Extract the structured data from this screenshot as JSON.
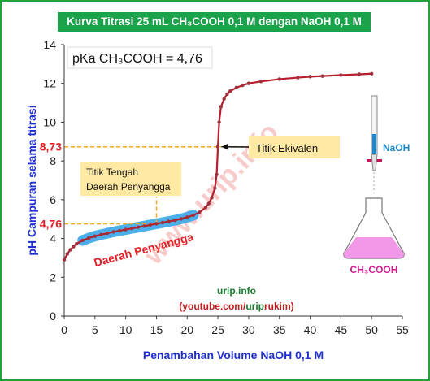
{
  "chart_data": {
    "type": "line",
    "title": "Kurva Titrasi 25 mL CH₃COOH 0,1 M dengan NaOH 0,1 M",
    "xlabel": "Penambahan Volume NaOH 0,1 M",
    "ylabel": "pH Campuran selama titrasi",
    "xlim": [
      0,
      55
    ],
    "ylim": [
      0,
      14
    ],
    "xticks": [
      0,
      5,
      10,
      15,
      20,
      25,
      30,
      35,
      40,
      45,
      50,
      55
    ],
    "yticks": [
      0,
      2,
      4,
      6,
      8,
      10,
      12,
      14
    ],
    "grid": false,
    "series": [
      {
        "x": [
          0,
          0.5,
          1,
          1.5,
          2,
          3,
          4,
          5,
          6,
          7,
          8,
          9,
          10,
          11,
          12,
          13,
          14,
          15,
          16,
          17,
          18,
          19,
          20,
          21,
          22,
          23,
          23.5,
          24,
          24.5,
          24.8,
          25,
          25.2,
          25.5,
          26,
          26.5,
          27,
          28,
          29,
          30,
          32,
          35,
          38,
          40,
          42,
          45,
          48,
          50
        ],
        "y": [
          2.9,
          3.2,
          3.42,
          3.58,
          3.72,
          3.9,
          4.02,
          4.12,
          4.2,
          4.27,
          4.34,
          4.4,
          4.46,
          4.52,
          4.58,
          4.64,
          4.7,
          4.76,
          4.82,
          4.88,
          4.94,
          5.01,
          5.1,
          5.2,
          5.35,
          5.6,
          5.8,
          6.1,
          6.6,
          7.3,
          8.73,
          10.0,
          10.8,
          11.2,
          11.45,
          11.6,
          11.78,
          11.9,
          12.0,
          12.1,
          12.22,
          12.3,
          12.35,
          12.38,
          12.43,
          12.47,
          12.5
        ]
      }
    ],
    "annotations": {
      "pka": "pKa CH₃COOH = 4,76",
      "ph_half_equivalence": 4.76,
      "ph_half_equivalence_label": "4,76",
      "ph_equivalence": 8.73,
      "ph_equivalence_label": "8,73",
      "half_equivalence_label_line1": "Titik Tengah",
      "half_equivalence_label_line2": "Daerah Penyangga",
      "equivalence_label": "Titik Ekivalen",
      "buffer_label": "Daerah Penyangga",
      "buffer_region_x": [
        2.5,
        21.5
      ],
      "watermark": "www.urip.info",
      "source_line1": "urip.info",
      "source_line2_a": "(youtube.com/",
      "source_line2_b": "urip",
      "source_line2_c": "rukim)",
      "naoh_label": "NaOH",
      "flask_label": "CH₃COOH"
    },
    "colors": {
      "curve": "#b81d2e",
      "marker": "#a1303a",
      "buffer": "#37a7e8",
      "dashed": "#f5a623",
      "label_box": "#ffe9a3",
      "axis_label": "#1f2fd1",
      "ph_value": "#e31e24",
      "title_bg": "#1aa34a",
      "watermark": "#f2a0a0",
      "naoh": "#1e87c8",
      "flask_label": "#d11d8e",
      "flask_liquid": "#f08ee6"
    }
  }
}
